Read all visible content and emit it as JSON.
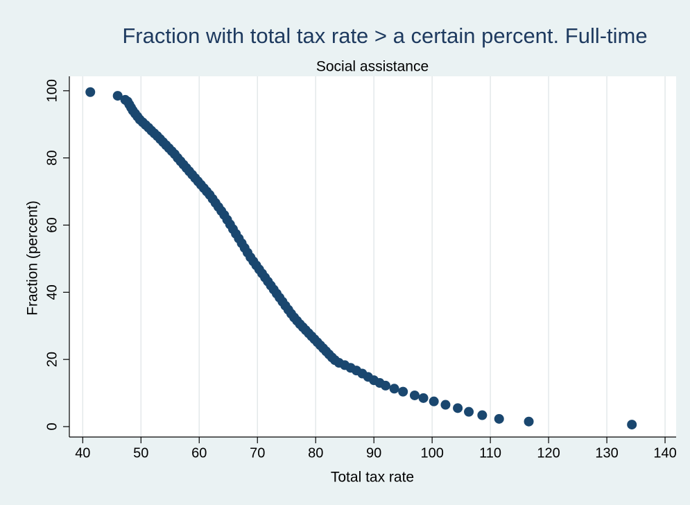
{
  "chart_data": {
    "type": "scatter",
    "title": "Fraction with total tax rate > a certain percent. Full-time",
    "subtitle": "Social assistance",
    "x_label": "Total tax rate",
    "y_label": "Fraction (percent)",
    "color": "#1a476f",
    "xgrid": true,
    "xlim": [
      37.7,
      141.9
    ],
    "ylim": [
      -3.1,
      104.3
    ],
    "xticks": [
      40,
      50,
      60,
      70,
      80,
      90,
      100,
      110,
      120,
      130,
      140
    ],
    "yticks": [
      0,
      20,
      40,
      60,
      80,
      100
    ],
    "x": [
      41.3,
      46,
      47.3,
      47.7,
      48,
      48.3,
      48.6,
      49,
      49.4,
      49.8,
      50.3,
      50.8,
      51.3,
      51.8,
      52.3,
      52.8,
      53.3,
      53.8,
      54.3,
      54.8,
      55.3,
      55.8,
      56.3,
      56.8,
      57.3,
      57.8,
      58.3,
      58.8,
      59.3,
      59.8,
      60.3,
      60.8,
      61.3,
      61.8,
      62.3,
      62.8,
      63.3,
      63.8,
      64.3,
      64.8,
      65.3,
      65.8,
      66.3,
      66.8,
      67.3,
      67.8,
      68.3,
      68.8,
      69.3,
      69.8,
      70.3,
      70.8,
      71.3,
      71.8,
      72.3,
      72.8,
      73.3,
      73.8,
      74.3,
      74.8,
      75.3,
      75.8,
      76.3,
      76.8,
      77.3,
      77.8,
      78.3,
      78.8,
      79.3,
      79.8,
      80.3,
      80.8,
      81.3,
      81.8,
      82.3,
      82.8,
      83.3,
      84,
      85,
      86,
      87,
      88,
      89,
      90,
      91,
      92,
      93.5,
      95,
      97,
      98.5,
      100.3,
      102.3,
      104.4,
      106.3,
      108.6,
      111.5,
      116.6,
      134.3
    ],
    "values": [
      99.6,
      98.5,
      97.3,
      96.8,
      95.9,
      95,
      94.1,
      93.2,
      92.3,
      91.4,
      90.6,
      89.8,
      89,
      88.1,
      87.3,
      86.5,
      85.6,
      84.7,
      83.8,
      82.9,
      82,
      81.1,
      80,
      79,
      78,
      77,
      76,
      75,
      74,
      73,
      72,
      71,
      70,
      69,
      67.8,
      66.6,
      65.4,
      64.2,
      63,
      61.6,
      60.2,
      58.8,
      57.4,
      56,
      54.6,
      53.2,
      51.8,
      50.4,
      49.2,
      48,
      46.8,
      45.6,
      44.4,
      43.2,
      42,
      40.8,
      39.6,
      38.4,
      37.2,
      36,
      34.8,
      33.6,
      32.5,
      31.5,
      30.5,
      29.6,
      28.7,
      27.8,
      26.9,
      26,
      25.1,
      24.2,
      23.3,
      22.4,
      21.5,
      20.6,
      19.8,
      19,
      18.3,
      17.5,
      16.7,
      15.8,
      14.8,
      13.8,
      13,
      12.2,
      11.3,
      10.4,
      9.3,
      8.5,
      7.5,
      6.5,
      5.5,
      4.4,
      3.4,
      2.3,
      1.5,
      0.6
    ]
  }
}
